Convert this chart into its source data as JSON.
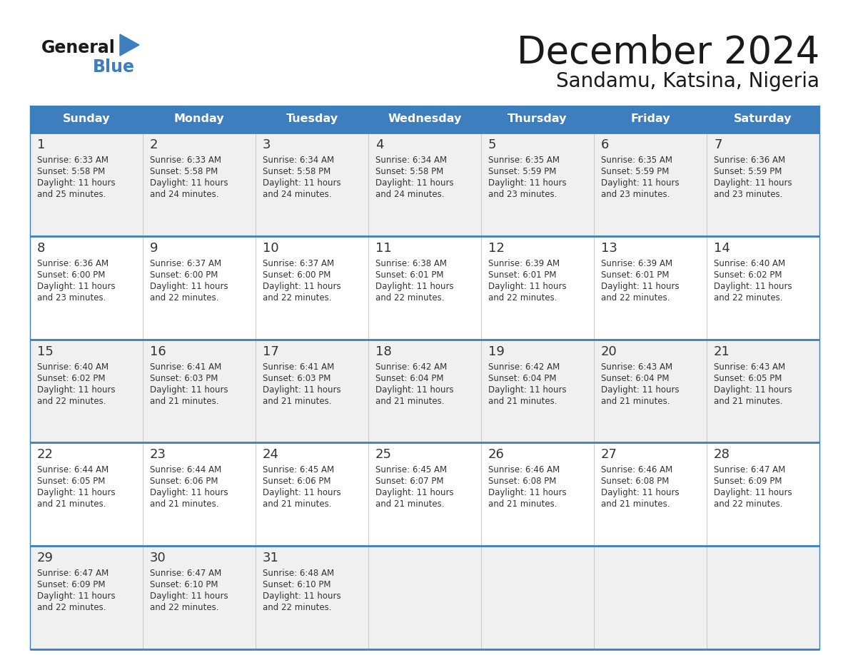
{
  "title": "December 2024",
  "subtitle": "Sandamu, Katsina, Nigeria",
  "days_of_week": [
    "Sunday",
    "Monday",
    "Tuesday",
    "Wednesday",
    "Thursday",
    "Friday",
    "Saturday"
  ],
  "header_bg": "#3d7ebf",
  "header_text": "#ffffff",
  "cell_bg_odd": "#f0f0f0",
  "cell_bg_even": "#ffffff",
  "separator_color": "#3d7ebf",
  "text_color": "#333333",
  "title_color": "#1a1a1a",
  "calendar_data": [
    [
      {
        "day": 1,
        "sunrise": "6:33 AM",
        "sunset": "5:58 PM",
        "daylight_h": "11 hours",
        "daylight_m": "and 25 minutes."
      },
      {
        "day": 2,
        "sunrise": "6:33 AM",
        "sunset": "5:58 PM",
        "daylight_h": "11 hours",
        "daylight_m": "and 24 minutes."
      },
      {
        "day": 3,
        "sunrise": "6:34 AM",
        "sunset": "5:58 PM",
        "daylight_h": "11 hours",
        "daylight_m": "and 24 minutes."
      },
      {
        "day": 4,
        "sunrise": "6:34 AM",
        "sunset": "5:58 PM",
        "daylight_h": "11 hours",
        "daylight_m": "and 24 minutes."
      },
      {
        "day": 5,
        "sunrise": "6:35 AM",
        "sunset": "5:59 PM",
        "daylight_h": "11 hours",
        "daylight_m": "and 23 minutes."
      },
      {
        "day": 6,
        "sunrise": "6:35 AM",
        "sunset": "5:59 PM",
        "daylight_h": "11 hours",
        "daylight_m": "and 23 minutes."
      },
      {
        "day": 7,
        "sunrise": "6:36 AM",
        "sunset": "5:59 PM",
        "daylight_h": "11 hours",
        "daylight_m": "and 23 minutes."
      }
    ],
    [
      {
        "day": 8,
        "sunrise": "6:36 AM",
        "sunset": "6:00 PM",
        "daylight_h": "11 hours",
        "daylight_m": "and 23 minutes."
      },
      {
        "day": 9,
        "sunrise": "6:37 AM",
        "sunset": "6:00 PM",
        "daylight_h": "11 hours",
        "daylight_m": "and 22 minutes."
      },
      {
        "day": 10,
        "sunrise": "6:37 AM",
        "sunset": "6:00 PM",
        "daylight_h": "11 hours",
        "daylight_m": "and 22 minutes."
      },
      {
        "day": 11,
        "sunrise": "6:38 AM",
        "sunset": "6:01 PM",
        "daylight_h": "11 hours",
        "daylight_m": "and 22 minutes."
      },
      {
        "day": 12,
        "sunrise": "6:39 AM",
        "sunset": "6:01 PM",
        "daylight_h": "11 hours",
        "daylight_m": "and 22 minutes."
      },
      {
        "day": 13,
        "sunrise": "6:39 AM",
        "sunset": "6:01 PM",
        "daylight_h": "11 hours",
        "daylight_m": "and 22 minutes."
      },
      {
        "day": 14,
        "sunrise": "6:40 AM",
        "sunset": "6:02 PM",
        "daylight_h": "11 hours",
        "daylight_m": "and 22 minutes."
      }
    ],
    [
      {
        "day": 15,
        "sunrise": "6:40 AM",
        "sunset": "6:02 PM",
        "daylight_h": "11 hours",
        "daylight_m": "and 22 minutes."
      },
      {
        "day": 16,
        "sunrise": "6:41 AM",
        "sunset": "6:03 PM",
        "daylight_h": "11 hours",
        "daylight_m": "and 21 minutes."
      },
      {
        "day": 17,
        "sunrise": "6:41 AM",
        "sunset": "6:03 PM",
        "daylight_h": "11 hours",
        "daylight_m": "and 21 minutes."
      },
      {
        "day": 18,
        "sunrise": "6:42 AM",
        "sunset": "6:04 PM",
        "daylight_h": "11 hours",
        "daylight_m": "and 21 minutes."
      },
      {
        "day": 19,
        "sunrise": "6:42 AM",
        "sunset": "6:04 PM",
        "daylight_h": "11 hours",
        "daylight_m": "and 21 minutes."
      },
      {
        "day": 20,
        "sunrise": "6:43 AM",
        "sunset": "6:04 PM",
        "daylight_h": "11 hours",
        "daylight_m": "and 21 minutes."
      },
      {
        "day": 21,
        "sunrise": "6:43 AM",
        "sunset": "6:05 PM",
        "daylight_h": "11 hours",
        "daylight_m": "and 21 minutes."
      }
    ],
    [
      {
        "day": 22,
        "sunrise": "6:44 AM",
        "sunset": "6:05 PM",
        "daylight_h": "11 hours",
        "daylight_m": "and 21 minutes."
      },
      {
        "day": 23,
        "sunrise": "6:44 AM",
        "sunset": "6:06 PM",
        "daylight_h": "11 hours",
        "daylight_m": "and 21 minutes."
      },
      {
        "day": 24,
        "sunrise": "6:45 AM",
        "sunset": "6:06 PM",
        "daylight_h": "11 hours",
        "daylight_m": "and 21 minutes."
      },
      {
        "day": 25,
        "sunrise": "6:45 AM",
        "sunset": "6:07 PM",
        "daylight_h": "11 hours",
        "daylight_m": "and 21 minutes."
      },
      {
        "day": 26,
        "sunrise": "6:46 AM",
        "sunset": "6:08 PM",
        "daylight_h": "11 hours",
        "daylight_m": "and 21 minutes."
      },
      {
        "day": 27,
        "sunrise": "6:46 AM",
        "sunset": "6:08 PM",
        "daylight_h": "11 hours",
        "daylight_m": "and 21 minutes."
      },
      {
        "day": 28,
        "sunrise": "6:47 AM",
        "sunset": "6:09 PM",
        "daylight_h": "11 hours",
        "daylight_m": "and 22 minutes."
      }
    ],
    [
      {
        "day": 29,
        "sunrise": "6:47 AM",
        "sunset": "6:09 PM",
        "daylight_h": "11 hours",
        "daylight_m": "and 22 minutes."
      },
      {
        "day": 30,
        "sunrise": "6:47 AM",
        "sunset": "6:10 PM",
        "daylight_h": "11 hours",
        "daylight_m": "and 22 minutes."
      },
      {
        "day": 31,
        "sunrise": "6:48 AM",
        "sunset": "6:10 PM",
        "daylight_h": "11 hours",
        "daylight_m": "and 22 minutes."
      },
      null,
      null,
      null,
      null
    ]
  ],
  "logo_text_general": "General",
  "logo_text_blue": "Blue",
  "logo_triangle_color": "#3d7ebf"
}
